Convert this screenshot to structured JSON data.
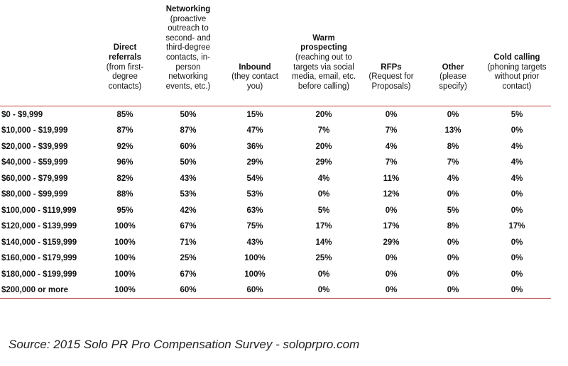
{
  "table": {
    "columns": [
      {
        "title": "",
        "sub": ""
      },
      {
        "title": "Direct referrals",
        "sub": "(from first-degree contacts)"
      },
      {
        "title": "Networking",
        "sub": "(proactive outreach to second- and third-degree contacts, in-person networking events, etc.)"
      },
      {
        "title": "Inbound",
        "sub": "(they contact you)"
      },
      {
        "title": "Warm prospecting",
        "sub": "(reaching out to targets via social media, email, etc. before calling)"
      },
      {
        "title": "RFPs",
        "sub": "(Request for Proposals)"
      },
      {
        "title": "Other",
        "sub": "(please specify)"
      },
      {
        "title": "Cold calling",
        "sub": "(phoning targets without prior contact)"
      }
    ],
    "rows": [
      {
        "label": "$0 - $9,999",
        "values": [
          "85%",
          "50%",
          "15%",
          "20%",
          "0%",
          "0%",
          "5%"
        ]
      },
      {
        "label": "$10,000 - $19,999",
        "values": [
          "87%",
          "87%",
          "47%",
          "7%",
          "7%",
          "13%",
          "0%"
        ]
      },
      {
        "label": "$20,000 - $39,999",
        "values": [
          "92%",
          "60%",
          "36%",
          "20%",
          "4%",
          "8%",
          "4%"
        ]
      },
      {
        "label": "$40,000 - $59,999",
        "values": [
          "96%",
          "50%",
          "29%",
          "29%",
          "7%",
          "7%",
          "4%"
        ]
      },
      {
        "label": "$60,000 - $79,999",
        "values": [
          "82%",
          "43%",
          "54%",
          "4%",
          "11%",
          "4%",
          "4%"
        ]
      },
      {
        "label": "$80,000 - $99,999",
        "values": [
          "88%",
          "53%",
          "53%",
          "0%",
          "12%",
          "0%",
          "0%"
        ]
      },
      {
        "label": "$100,000 - $119,999",
        "values": [
          "95%",
          "42%",
          "63%",
          "5%",
          "0%",
          "5%",
          "0%"
        ]
      },
      {
        "label": "$120,000 - $139,999",
        "values": [
          "100%",
          "67%",
          "75%",
          "17%",
          "17%",
          "8%",
          "17%"
        ]
      },
      {
        "label": "$140,000 - $159,999",
        "values": [
          "100%",
          "71%",
          "43%",
          "14%",
          "29%",
          "0%",
          "0%"
        ]
      },
      {
        "label": "$160,000 - $179,999",
        "values": [
          "100%",
          "25%",
          "100%",
          "25%",
          "0%",
          "0%",
          "0%"
        ]
      },
      {
        "label": "$180,000 - $199,999",
        "values": [
          "100%",
          "67%",
          "100%",
          "0%",
          "0%",
          "0%",
          "0%"
        ]
      },
      {
        "label": "$200,000 or more",
        "values": [
          "100%",
          "60%",
          "60%",
          "0%",
          "0%",
          "0%",
          "0%"
        ]
      }
    ]
  },
  "colors": {
    "rule": "#b83a3a"
  },
  "source": "Source: 2015 Solo PR Pro Compensation Survey - soloprpro.com"
}
